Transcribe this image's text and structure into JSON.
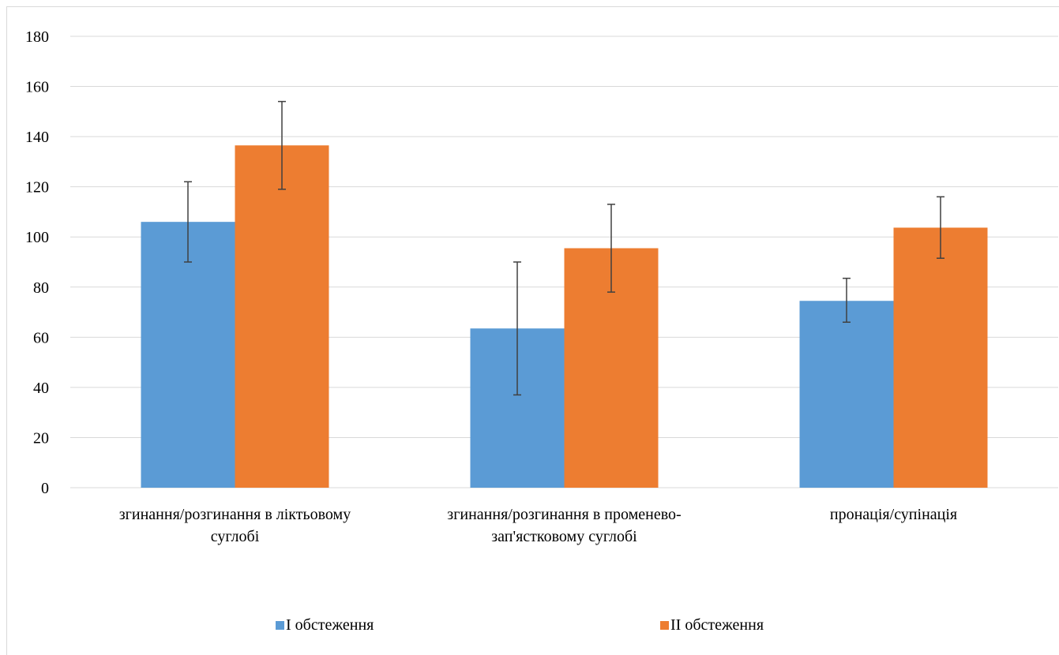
{
  "chart_data": {
    "type": "bar",
    "categories": [
      [
        "згинання/розгинання в ліктьовому",
        "суглобі"
      ],
      [
        "згинання/розгинання в променево-",
        "зап'ястковому суглобі"
      ],
      [
        "пронація/супінація"
      ]
    ],
    "series": [
      {
        "name": "I обстеження",
        "color": "#5b9bd5",
        "values": [
          106,
          63.5,
          74.5
        ],
        "error": [
          [
            90,
            122
          ],
          [
            37,
            90
          ],
          [
            66,
            83.5
          ]
        ]
      },
      {
        "name": "II обстеження",
        "color": "#ed7d31",
        "values": [
          136.5,
          95.5,
          103.7
        ],
        "error": [
          [
            119,
            154
          ],
          [
            78,
            113
          ],
          [
            91.5,
            116
          ]
        ]
      }
    ],
    "ylim": [
      0,
      180
    ],
    "yticks": [
      0,
      20,
      40,
      60,
      80,
      100,
      120,
      140,
      160,
      180
    ],
    "title": "",
    "xlabel": "",
    "ylabel": "",
    "grid": true,
    "legend_position": "bottom",
    "gridline_color": "#d9d9d9",
    "errorbar_color": "#404040"
  }
}
